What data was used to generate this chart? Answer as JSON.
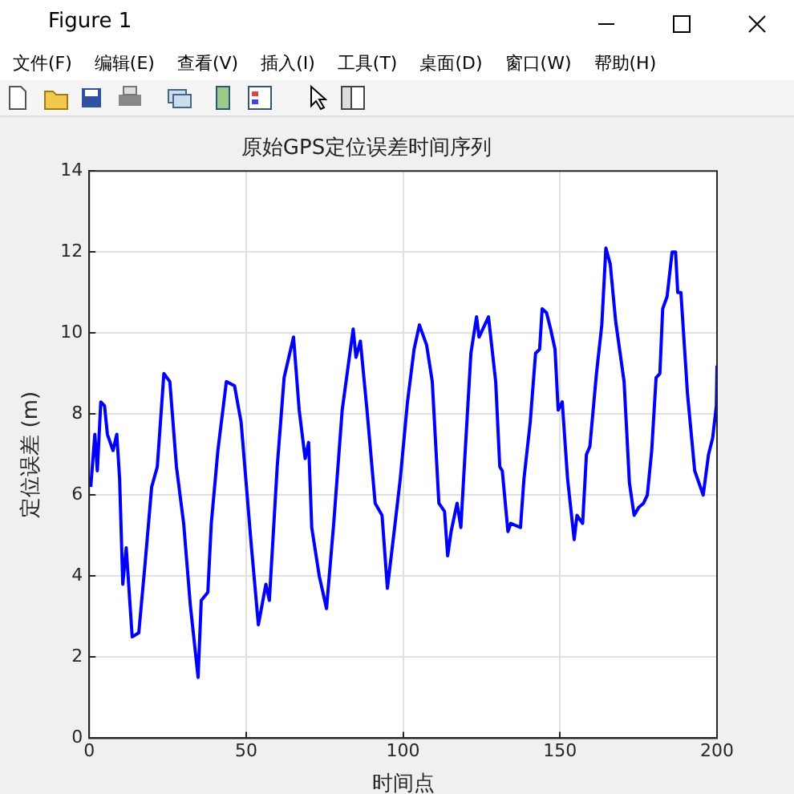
{
  "chart_data": {
    "type": "line",
    "title": "原始GPS定位误差时间序列",
    "xlabel": "时间点",
    "ylabel": "定位误差 (m)",
    "annotations": [
      "Figure 1",
      "文件(F)",
      "编辑(E)",
      "查看(V)",
      "插入(I)",
      "工具(T)",
      "桌面(D)",
      "窗口(W)",
      "帮助(H)"
    ],
    "xlim": [
      0,
      200
    ],
    "xticks": [
      0,
      50,
      100,
      150,
      200
    ],
    "ylim": [
      0,
      14
    ],
    "yticks": [
      0,
      2,
      4,
      6,
      8,
      10,
      12,
      14
    ],
    "grid": true,
    "legend": false,
    "marker": "none",
    "line_style": "solid",
    "series": [
      {
        "color": "#0000ff",
        "x": [
          0.5,
          1.8,
          2.6,
          3.7,
          4.9,
          5.8,
          7.6,
          8.8,
          9.7,
          10.7,
          11.8,
          13.7,
          15.8,
          17.8,
          19.9,
          21.7,
          23.8,
          25.7,
          27.8,
          30.1,
          32.2,
          34.7,
          35.7,
          37.8,
          38.9,
          41.0,
          43.7,
          46.3,
          48.4,
          51.6,
          53.9,
          56.3,
          57.4,
          59.9,
          62.1,
          65.1,
          66.9,
          68.8,
          69.9,
          70.9,
          73.3,
          75.6,
          77.9,
          80.6,
          84.1,
          85.0,
          86.4,
          88.5,
          91.1,
          93.3,
          95.0,
          97.3,
          99.1,
          101.4,
          103.5,
          105.2,
          107.5,
          109.3,
          111.4,
          113.2,
          114.2,
          115.3,
          117.2,
          118.4,
          119.5,
          121.6,
          123.4,
          124.2,
          127.2,
          129.5,
          130.8,
          131.6,
          133.4,
          134.3,
          137.4,
          138.5,
          140.5,
          142.2,
          143.5,
          144.3,
          145.7,
          147.0,
          148.4,
          149.4,
          150.7,
          152.4,
          154.5,
          155.4,
          157.2,
          158.4,
          159.5,
          161.6,
          163.3,
          164.6,
          166.0,
          167.7,
          170.4,
          172.1,
          173.6,
          175.1,
          176.6,
          177.8,
          179.2,
          180.6,
          181.8,
          182.7,
          184.1,
          185.7,
          186.8,
          187.5,
          188.5,
          190.6,
          192.9,
          195.6,
          197.3,
          198.6,
          199.8,
          200
        ],
        "values": [
          6.2,
          7.5,
          6.6,
          8.3,
          8.2,
          7.5,
          7.1,
          7.5,
          6.4,
          3.8,
          4.7,
          2.5,
          2.6,
          4.3,
          6.2,
          6.7,
          9.0,
          8.8,
          6.7,
          5.3,
          3.3,
          1.5,
          3.4,
          3.6,
          5.3,
          7.1,
          8.8,
          8.7,
          7.8,
          4.8,
          2.8,
          3.8,
          3.4,
          6.7,
          8.9,
          9.9,
          8.1,
          6.9,
          7.3,
          5.2,
          4.0,
          3.2,
          5.3,
          8.1,
          10.1,
          9.4,
          9.8,
          8.1,
          5.8,
          5.5,
          3.7,
          5.2,
          6.4,
          8.3,
          9.6,
          10.2,
          9.7,
          8.8,
          5.8,
          5.6,
          4.5,
          5.1,
          5.8,
          5.2,
          6.7,
          9.5,
          10.4,
          9.9,
          10.4,
          8.8,
          6.7,
          6.6,
          5.1,
          5.3,
          5.2,
          6.4,
          7.8,
          9.5,
          9.6,
          10.6,
          10.5,
          10.1,
          9.6,
          8.1,
          8.3,
          6.4,
          4.9,
          5.5,
          5.3,
          7.0,
          7.2,
          9.0,
          10.2,
          12.1,
          11.7,
          10.3,
          8.8,
          6.3,
          5.5,
          5.7,
          5.8,
          6.0,
          7.1,
          8.9,
          9.0,
          10.6,
          10.9,
          12.0,
          12.0,
          11.0,
          11.0,
          8.5,
          6.6,
          6.0,
          7.0,
          7.4,
          8.2,
          9.2
        ]
      }
    ]
  }
}
